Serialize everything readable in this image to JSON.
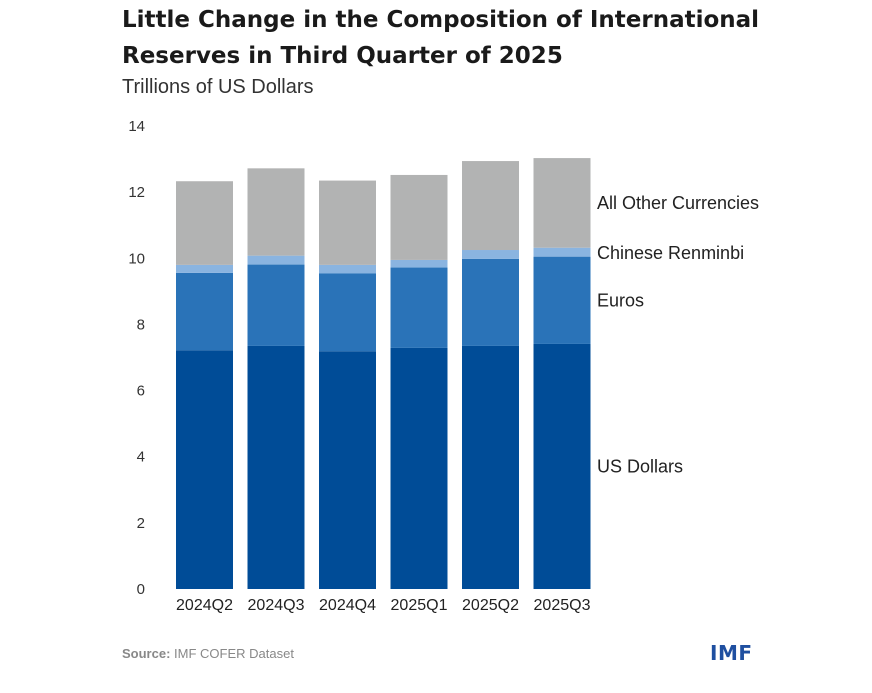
{
  "title": "Little Change in the Composition of International Reserves in Third Quarter of 2025",
  "subtitle": "Trillions of US Dollars",
  "source_label": "Source:",
  "source_text": "IMF COFER Dataset",
  "logo_text": "IMF",
  "colors": {
    "us_dollars": "#004c97",
    "euros": "#2a73b8",
    "renminbi": "#8ab4e0",
    "other": "#b2b3b3",
    "logo": "#1f4fa0"
  },
  "chart_data": {
    "type": "bar",
    "stacked": true,
    "title": "Little Change in the Composition of International Reserves in Third Quarter of 2025",
    "ylabel": "Trillions of US Dollars",
    "xlabel": "",
    "ylim": [
      0,
      14
    ],
    "yticks": [
      0,
      2,
      4,
      6,
      8,
      10,
      12,
      14
    ],
    "categories": [
      "2024Q2",
      "2024Q3",
      "2024Q4",
      "2025Q1",
      "2025Q2",
      "2025Q3"
    ],
    "series": [
      {
        "name": "US Dollars",
        "color_key": "us_dollars",
        "values": [
          7.22,
          7.35,
          7.19,
          7.29,
          7.35,
          7.41
        ]
      },
      {
        "name": "Euros",
        "color_key": "euros",
        "values": [
          2.34,
          2.46,
          2.35,
          2.43,
          2.63,
          2.64
        ]
      },
      {
        "name": "Chinese Renminbi",
        "color_key": "renminbi",
        "values": [
          0.24,
          0.27,
          0.26,
          0.23,
          0.27,
          0.27
        ]
      },
      {
        "name": "All Other Currencies",
        "color_key": "other",
        "values": [
          2.53,
          2.64,
          2.55,
          2.57,
          2.69,
          2.71
        ]
      }
    ],
    "legend_placement": "right, inline beside last bar"
  }
}
